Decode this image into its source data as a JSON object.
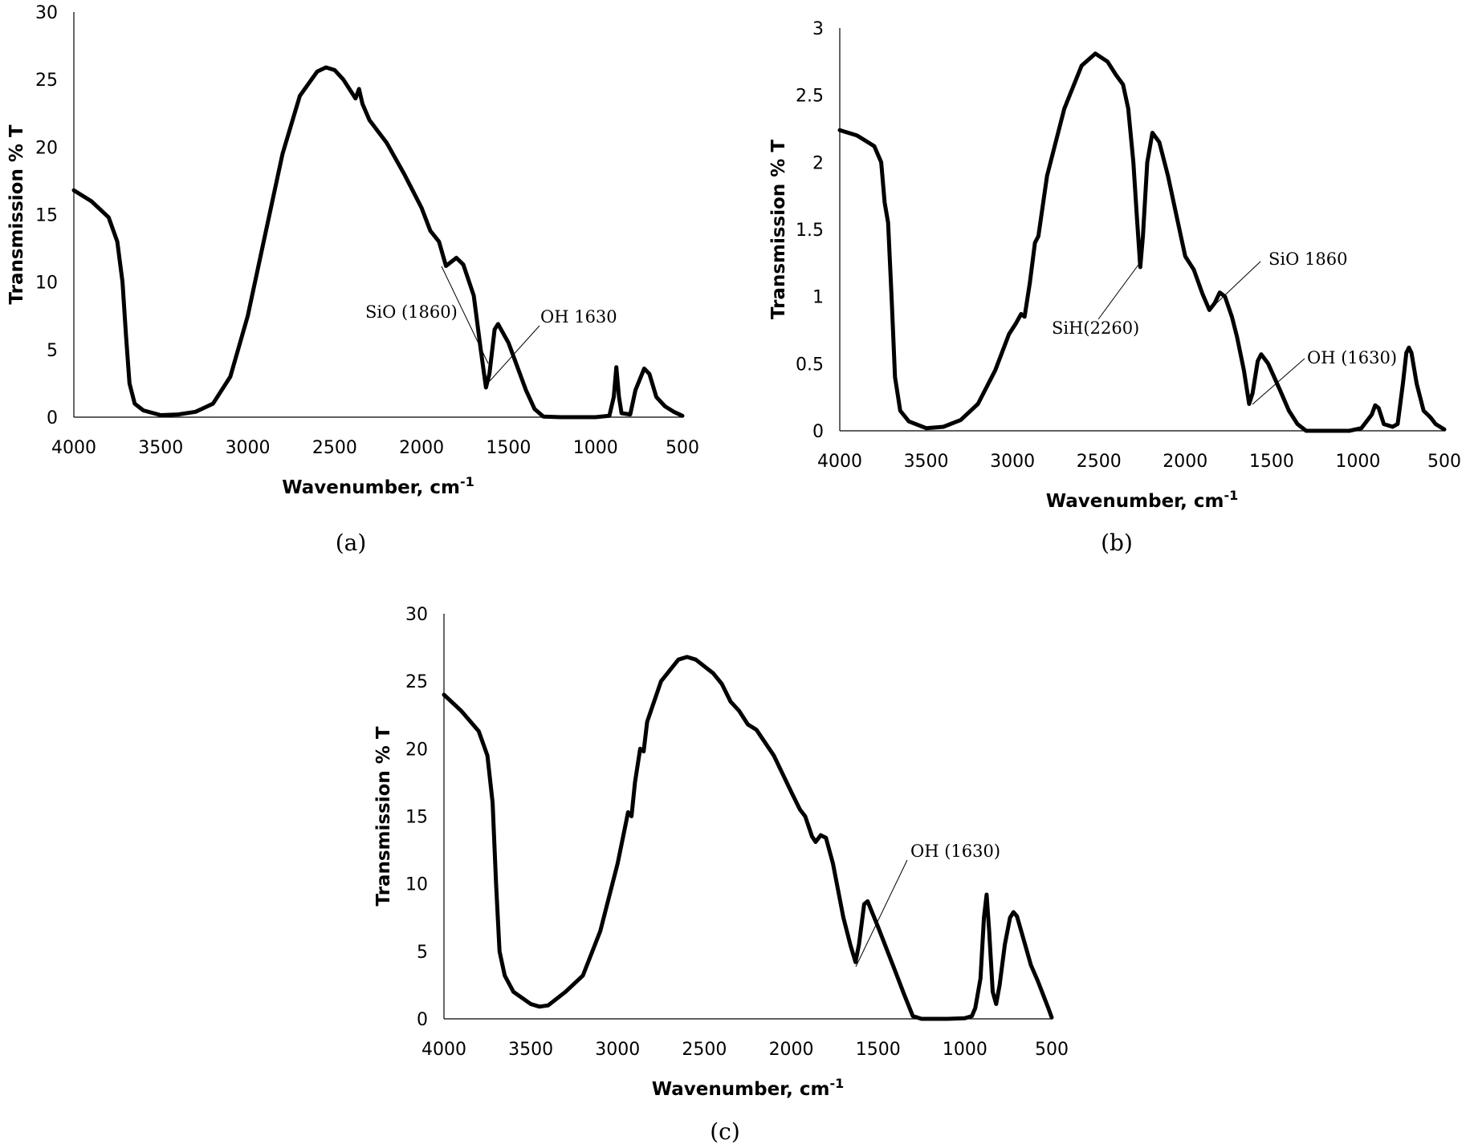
{
  "chart_data": [
    {
      "type": "line",
      "panel_label": "(a)",
      "xlabel": "Wavenumber, cm",
      "xlabel_sup": "-1",
      "ylabel": "Transmission % T",
      "xlim": [
        4000,
        500
      ],
      "ylim": [
        0,
        30
      ],
      "xticks": [
        4000,
        3500,
        3000,
        2500,
        2000,
        1500,
        1000,
        500
      ],
      "yticks": [
        0,
        5,
        10,
        15,
        20,
        25,
        30
      ],
      "series": [
        {
          "points": [
            [
              4000,
              16.8
            ],
            [
              3900,
              16.0
            ],
            [
              3800,
              14.8
            ],
            [
              3750,
              13.0
            ],
            [
              3720,
              10.0
            ],
            [
              3700,
              6.0
            ],
            [
              3680,
              2.5
            ],
            [
              3650,
              1.0
            ],
            [
              3600,
              0.5
            ],
            [
              3500,
              0.15
            ],
            [
              3400,
              0.2
            ],
            [
              3300,
              0.4
            ],
            [
              3200,
              1.0
            ],
            [
              3100,
              3.0
            ],
            [
              3000,
              7.5
            ],
            [
              2900,
              13.5
            ],
            [
              2800,
              19.5
            ],
            [
              2700,
              23.8
            ],
            [
              2600,
              25.6
            ],
            [
              2550,
              25.9
            ],
            [
              2500,
              25.7
            ],
            [
              2450,
              25.0
            ],
            [
              2400,
              24.0
            ],
            [
              2380,
              23.6
            ],
            [
              2360,
              24.3
            ],
            [
              2340,
              23.2
            ],
            [
              2300,
              22.0
            ],
            [
              2200,
              20.3
            ],
            [
              2100,
              18.0
            ],
            [
              2000,
              15.5
            ],
            [
              1950,
              13.8
            ],
            [
              1900,
              13.0
            ],
            [
              1860,
              11.2
            ],
            [
              1800,
              11.8
            ],
            [
              1760,
              11.3
            ],
            [
              1700,
              9.0
            ],
            [
              1660,
              5.0
            ],
            [
              1630,
              2.2
            ],
            [
              1610,
              3.2
            ],
            [
              1580,
              6.5
            ],
            [
              1560,
              6.9
            ],
            [
              1500,
              5.5
            ],
            [
              1400,
              2.0
            ],
            [
              1350,
              0.6
            ],
            [
              1300,
              0.05
            ],
            [
              1200,
              0.0
            ],
            [
              1000,
              0.0
            ],
            [
              920,
              0.1
            ],
            [
              895,
              1.5
            ],
            [
              880,
              3.7
            ],
            [
              865,
              1.5
            ],
            [
              850,
              0.3
            ],
            [
              800,
              0.2
            ],
            [
              770,
              2.0
            ],
            [
              720,
              3.6
            ],
            [
              690,
              3.2
            ],
            [
              650,
              1.5
            ],
            [
              600,
              0.8
            ],
            [
              550,
              0.4
            ],
            [
              500,
              0.1
            ]
          ]
        }
      ],
      "annotations": [
        {
          "text": "SiO (1860)",
          "x": 1860,
          "y": 11.2
        },
        {
          "text": "OH 1630",
          "x": 1630,
          "y": 2.3
        }
      ]
    },
    {
      "type": "line",
      "panel_label": "(b)",
      "xlabel": "Wavenumber, cm",
      "xlabel_sup": "-1",
      "ylabel": "Transmission % T",
      "xlim": [
        4000,
        500
      ],
      "ylim": [
        0,
        3
      ],
      "xticks": [
        4000,
        3500,
        3000,
        2500,
        2000,
        1500,
        1000,
        500
      ],
      "yticks": [
        0,
        0.5,
        1,
        1.5,
        2,
        2.5,
        3
      ],
      "ytick_labels": [
        "0",
        "0.5",
        "1",
        "1.5",
        "2",
        "2.5",
        "3"
      ],
      "series": [
        {
          "points": [
            [
              4000,
              2.24
            ],
            [
              3900,
              2.2
            ],
            [
              3800,
              2.12
            ],
            [
              3760,
              2.0
            ],
            [
              3740,
              1.7
            ],
            [
              3720,
              1.55
            ],
            [
              3700,
              1.0
            ],
            [
              3680,
              0.4
            ],
            [
              3650,
              0.15
            ],
            [
              3600,
              0.07
            ],
            [
              3500,
              0.02
            ],
            [
              3400,
              0.03
            ],
            [
              3300,
              0.08
            ],
            [
              3200,
              0.2
            ],
            [
              3100,
              0.45
            ],
            [
              3020,
              0.72
            ],
            [
              2980,
              0.8
            ],
            [
              2950,
              0.87
            ],
            [
              2930,
              0.85
            ],
            [
              2900,
              1.1
            ],
            [
              2870,
              1.4
            ],
            [
              2850,
              1.45
            ],
            [
              2800,
              1.9
            ],
            [
              2700,
              2.4
            ],
            [
              2600,
              2.72
            ],
            [
              2520,
              2.81
            ],
            [
              2450,
              2.75
            ],
            [
              2400,
              2.65
            ],
            [
              2360,
              2.58
            ],
            [
              2330,
              2.4
            ],
            [
              2300,
              2.0
            ],
            [
              2280,
              1.6
            ],
            [
              2260,
              1.22
            ],
            [
              2245,
              1.45
            ],
            [
              2220,
              2.0
            ],
            [
              2190,
              2.22
            ],
            [
              2150,
              2.15
            ],
            [
              2100,
              1.9
            ],
            [
              2050,
              1.6
            ],
            [
              2000,
              1.3
            ],
            [
              1950,
              1.2
            ],
            [
              1900,
              1.02
            ],
            [
              1860,
              0.9
            ],
            [
              1830,
              0.95
            ],
            [
              1800,
              1.03
            ],
            [
              1770,
              1.0
            ],
            [
              1730,
              0.85
            ],
            [
              1700,
              0.7
            ],
            [
              1660,
              0.45
            ],
            [
              1630,
              0.2
            ],
            [
              1610,
              0.28
            ],
            [
              1580,
              0.52
            ],
            [
              1560,
              0.57
            ],
            [
              1520,
              0.5
            ],
            [
              1450,
              0.3
            ],
            [
              1400,
              0.15
            ],
            [
              1350,
              0.05
            ],
            [
              1300,
              0.0
            ],
            [
              1200,
              0.0
            ],
            [
              1050,
              0.0
            ],
            [
              980,
              0.02
            ],
            [
              920,
              0.12
            ],
            [
              900,
              0.19
            ],
            [
              880,
              0.17
            ],
            [
              850,
              0.05
            ],
            [
              800,
              0.03
            ],
            [
              770,
              0.05
            ],
            [
              740,
              0.35
            ],
            [
              720,
              0.58
            ],
            [
              705,
              0.62
            ],
            [
              690,
              0.58
            ],
            [
              660,
              0.35
            ],
            [
              620,
              0.15
            ],
            [
              580,
              0.1
            ],
            [
              550,
              0.05
            ],
            [
              500,
              0.01
            ]
          ]
        }
      ],
      "annotations": [
        {
          "text": "SiH(2260)",
          "x": 2260,
          "y": 1.22
        },
        {
          "text": "SiO 1860",
          "x": 1860,
          "y": 0.9
        },
        {
          "text": "OH (1630)",
          "x": 1630,
          "y": 0.2
        }
      ]
    },
    {
      "type": "line",
      "panel_label": "(c)",
      "xlabel": "Wavenumber, cm",
      "xlabel_sup": "-1",
      "ylabel": "Transmission % T",
      "xlim": [
        4000,
        500
      ],
      "ylim": [
        0,
        30
      ],
      "xticks": [
        4000,
        3500,
        3000,
        2500,
        2000,
        1500,
        1000,
        500
      ],
      "yticks": [
        0,
        5,
        10,
        15,
        20,
        25,
        30
      ],
      "series": [
        {
          "points": [
            [
              4000,
              24.0
            ],
            [
              3900,
              22.8
            ],
            [
              3800,
              21.3
            ],
            [
              3750,
              19.5
            ],
            [
              3720,
              16.0
            ],
            [
              3700,
              10.0
            ],
            [
              3680,
              5.0
            ],
            [
              3650,
              3.2
            ],
            [
              3600,
              2.0
            ],
            [
              3500,
              1.1
            ],
            [
              3450,
              0.9
            ],
            [
              3400,
              1.0
            ],
            [
              3300,
              2.0
            ],
            [
              3200,
              3.2
            ],
            [
              3100,
              6.5
            ],
            [
              3000,
              11.5
            ],
            [
              2960,
              14.0
            ],
            [
              2940,
              15.3
            ],
            [
              2920,
              15.0
            ],
            [
              2900,
              17.5
            ],
            [
              2870,
              20.0
            ],
            [
              2850,
              19.8
            ],
            [
              2830,
              22.0
            ],
            [
              2750,
              25.0
            ],
            [
              2650,
              26.6
            ],
            [
              2600,
              26.8
            ],
            [
              2550,
              26.6
            ],
            [
              2450,
              25.6
            ],
            [
              2400,
              24.8
            ],
            [
              2350,
              23.5
            ],
            [
              2300,
              22.8
            ],
            [
              2250,
              21.8
            ],
            [
              2200,
              21.4
            ],
            [
              2100,
              19.5
            ],
            [
              2000,
              16.8
            ],
            [
              1950,
              15.5
            ],
            [
              1920,
              15.0
            ],
            [
              1880,
              13.5
            ],
            [
              1860,
              13.1
            ],
            [
              1830,
              13.6
            ],
            [
              1800,
              13.4
            ],
            [
              1760,
              11.5
            ],
            [
              1700,
              7.5
            ],
            [
              1660,
              5.5
            ],
            [
              1630,
              4.2
            ],
            [
              1610,
              5.5
            ],
            [
              1580,
              8.5
            ],
            [
              1560,
              8.7
            ],
            [
              1500,
              6.8
            ],
            [
              1400,
              3.5
            ],
            [
              1350,
              1.8
            ],
            [
              1300,
              0.2
            ],
            [
              1250,
              0.0
            ],
            [
              1100,
              0.0
            ],
            [
              1000,
              0.05
            ],
            [
              960,
              0.2
            ],
            [
              940,
              0.8
            ],
            [
              910,
              3.0
            ],
            [
              890,
              7.5
            ],
            [
              875,
              9.2
            ],
            [
              860,
              6.5
            ],
            [
              840,
              2.0
            ],
            [
              820,
              1.1
            ],
            [
              800,
              2.5
            ],
            [
              770,
              5.5
            ],
            [
              740,
              7.5
            ],
            [
              720,
              7.9
            ],
            [
              700,
              7.6
            ],
            [
              660,
              5.8
            ],
            [
              620,
              4.0
            ],
            [
              580,
              2.8
            ],
            [
              550,
              1.8
            ],
            [
              520,
              0.8
            ],
            [
              500,
              0.1
            ]
          ]
        }
      ],
      "annotations": [
        {
          "text": "OH (1630)",
          "x": 1630,
          "y": 4.2
        }
      ]
    }
  ]
}
